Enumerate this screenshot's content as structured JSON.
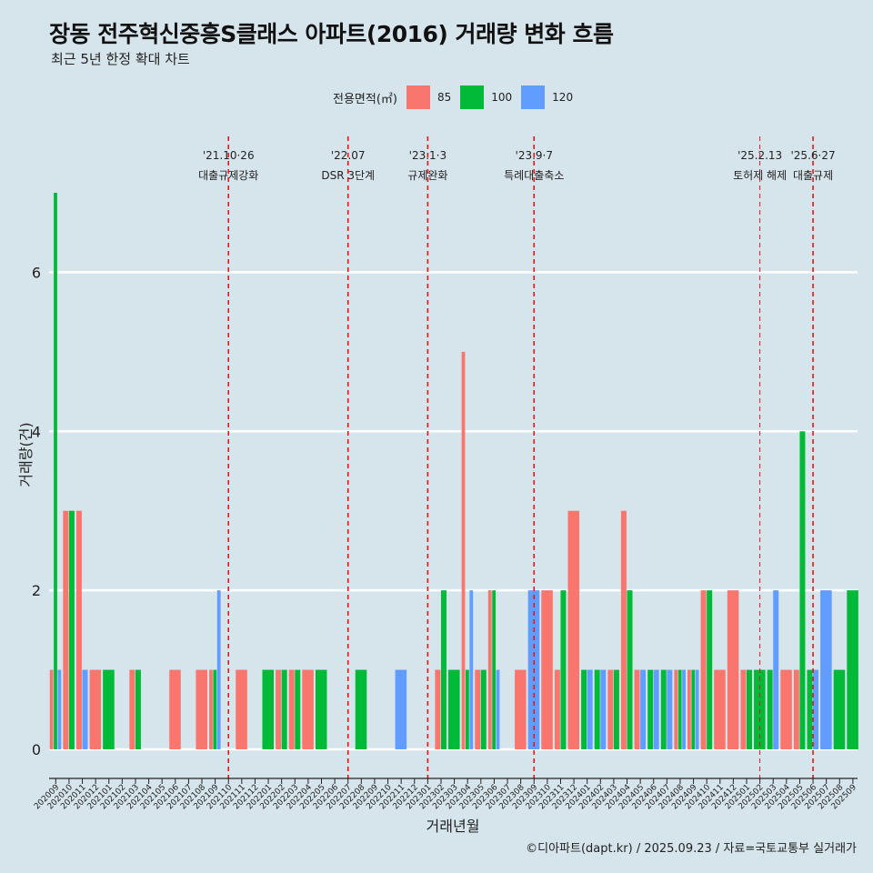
{
  "header": {
    "title": "장동 전주혁신중흥S클래스 아파트(2016) 거래량 변화 흐름",
    "subtitle": "최근 5년 한정 확대 차트"
  },
  "legend": {
    "title": "전용면적(㎡)",
    "items": [
      {
        "label": "85",
        "color": "#f8766d"
      },
      {
        "label": "100",
        "color": "#00ba38"
      },
      {
        "label": "120",
        "color": "#619cff"
      }
    ]
  },
  "caption": "©디아파트(dapt.kr) / 2025.09.23 / 자료=국토교통부 실거래가",
  "chart_data": {
    "type": "bar",
    "xlabel": "거래년월",
    "ylabel": "거래량(건)",
    "ylim": [
      -0.35,
      7.0
    ],
    "yticks": [
      0,
      2,
      4,
      6
    ],
    "grid": true,
    "legend_position": "top",
    "categories": [
      "202009",
      "202010",
      "202011",
      "202012",
      "202101",
      "202102",
      "202103",
      "202104",
      "202105",
      "202106",
      "202107",
      "202108",
      "202109",
      "202110",
      "202111",
      "202112",
      "202201",
      "202202",
      "202203",
      "202204",
      "202205",
      "202206",
      "202207",
      "202208",
      "202209",
      "202210",
      "202211",
      "202212",
      "202301",
      "202302",
      "202303",
      "202304",
      "202305",
      "202306",
      "202307",
      "202308",
      "202309",
      "202310",
      "202311",
      "202312",
      "202401",
      "202402",
      "202403",
      "202404",
      "202405",
      "202406",
      "202407",
      "202408",
      "202409",
      "202410",
      "202411",
      "202412",
      "202501",
      "202502",
      "202503",
      "202504",
      "202505",
      "202506",
      "202507",
      "202508",
      "202509"
    ],
    "series": [
      {
        "name": "85",
        "color": "#f8766d",
        "values": [
          1,
          3,
          3,
          1,
          0,
          0,
          1,
          0,
          0,
          1,
          0,
          1,
          1,
          0,
          1,
          0,
          0,
          1,
          1,
          1,
          0,
          0,
          0,
          0,
          0,
          0,
          0,
          0,
          0,
          1,
          0,
          5,
          1,
          2,
          0,
          1,
          0,
          2,
          1,
          3,
          0,
          0,
          1,
          3,
          1,
          0,
          0,
          1,
          1,
          2,
          1,
          2,
          1,
          0,
          0,
          1,
          1,
          0,
          0,
          0,
          0
        ]
      },
      {
        "name": "100",
        "color": "#00ba38",
        "values": [
          7,
          3,
          0,
          0,
          1,
          0,
          1,
          0,
          0,
          0,
          0,
          0,
          1,
          0,
          0,
          0,
          1,
          1,
          1,
          0,
          1,
          0,
          0,
          1,
          0,
          0,
          0,
          0,
          0,
          2,
          1,
          1,
          1,
          2,
          0,
          0,
          0,
          0,
          2,
          0,
          1,
          1,
          1,
          2,
          0,
          1,
          1,
          1,
          1,
          2,
          0,
          0,
          1,
          1,
          1,
          0,
          4,
          1,
          0,
          1,
          2
        ]
      },
      {
        "name": "120",
        "color": "#619cff",
        "values": [
          1,
          0,
          1,
          0,
          0,
          0,
          0,
          0,
          0,
          0,
          0,
          0,
          2,
          0,
          0,
          0,
          0,
          0,
          0,
          0,
          0,
          0,
          0,
          0,
          0,
          0,
          1,
          0,
          0,
          0,
          0,
          2,
          0,
          1,
          0,
          0,
          2,
          0,
          0,
          0,
          1,
          1,
          0,
          0,
          1,
          1,
          1,
          1,
          1,
          0,
          0,
          0,
          0,
          0,
          2,
          0,
          0,
          1,
          2,
          0,
          0
        ]
      }
    ],
    "events": [
      {
        "date": "'21.10·26",
        "label": "대출규제강화",
        "at": "202110"
      },
      {
        "date": "'22.07",
        "label": "DSR 3단계",
        "at": "202207"
      },
      {
        "date": "'23.1·3",
        "label": "규제완화",
        "at": "202301"
      },
      {
        "date": "'23.9·7",
        "label": "특례대출축소",
        "at": "202309"
      },
      {
        "date": "'25.2.13",
        "label": "토허제 해제",
        "at": "202502"
      },
      {
        "date": "'25.6·27",
        "label": "대출규제",
        "at": "202506"
      }
    ]
  }
}
